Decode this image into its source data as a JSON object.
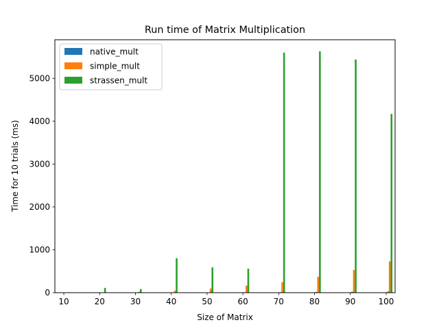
{
  "chart_data": {
    "type": "bar",
    "title": "Run time of Matrix Multiplication",
    "xlabel": "Size of Matrix",
    "ylabel": "Time for 10 trials (ms)",
    "categories": [
      "10",
      "20",
      "30",
      "40",
      "50",
      "60",
      "70",
      "80",
      "90",
      "100"
    ],
    "x": [
      10,
      20,
      30,
      40,
      50,
      60,
      70,
      80,
      90,
      100
    ],
    "xlim": [
      7.5,
      102.5
    ],
    "ylim": [
      0,
      5900
    ],
    "xticks": [
      10,
      20,
      30,
      40,
      50,
      60,
      70,
      80,
      90,
      100
    ],
    "yticks": [
      0,
      1000,
      2000,
      3000,
      4000,
      5000
    ],
    "legend_position": "upper left",
    "grid": false,
    "series": [
      {
        "name": "native_mult",
        "color": "#1f77b4",
        "offset": 0.5,
        "values": [
          1,
          2,
          3,
          5,
          7,
          10,
          13,
          17,
          21,
          25
        ]
      },
      {
        "name": "simple_mult",
        "color": "#ff7f0e",
        "offset": 1.0,
        "values": [
          2,
          8,
          20,
          45,
          95,
          165,
          245,
          370,
          530,
          730
        ]
      },
      {
        "name": "strassen_mult",
        "color": "#2ca02c",
        "offset": 1.5,
        "values": [
          10,
          110,
          85,
          805,
          590,
          560,
          5600,
          5630,
          5440,
          4170
        ]
      }
    ]
  }
}
